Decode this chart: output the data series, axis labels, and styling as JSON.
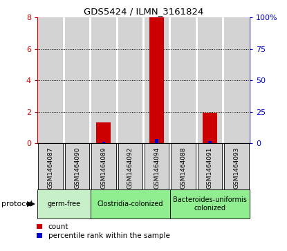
{
  "title": "GDS5424 / ILMN_3161824",
  "samples": [
    "GSM1464087",
    "GSM1464090",
    "GSM1464089",
    "GSM1464092",
    "GSM1464094",
    "GSM1464088",
    "GSM1464091",
    "GSM1464093"
  ],
  "count_values": [
    0,
    0,
    1.3,
    0,
    8.0,
    0,
    1.95,
    0
  ],
  "percentile_values": [
    0,
    0,
    0.85,
    0,
    3.35,
    0.22,
    1.4,
    0
  ],
  "ylim_left": [
    0,
    8
  ],
  "ylim_right": [
    0,
    100
  ],
  "yticks_left": [
    0,
    2,
    4,
    6,
    8
  ],
  "yticks_right": [
    0,
    25,
    50,
    75,
    100
  ],
  "ytick_labels_right": [
    "0",
    "25",
    "50",
    "75",
    "100%"
  ],
  "grid_lines": [
    2,
    4,
    6
  ],
  "groups": [
    {
      "label": "germ-free",
      "start": 0,
      "end": 1,
      "color": "#c8f0c8"
    },
    {
      "label": "Clostridia-colonized",
      "start": 2,
      "end": 4,
      "color": "#90ee90"
    },
    {
      "label": "Bacteroides-uniformis\ncolonized",
      "start": 5,
      "end": 7,
      "color": "#90ee90"
    }
  ],
  "count_color": "#cc0000",
  "percentile_color": "#0000cc",
  "sample_bg_color": "#d3d3d3",
  "bg_color": "#ffffff",
  "legend_labels": [
    "count",
    "percentile rank within the sample"
  ],
  "protocol_label": "protocol",
  "left_tick_color": "#cc0000",
  "right_tick_color": "#0000cc",
  "bar_width": 0.55,
  "pct_bar_width": 0.12
}
